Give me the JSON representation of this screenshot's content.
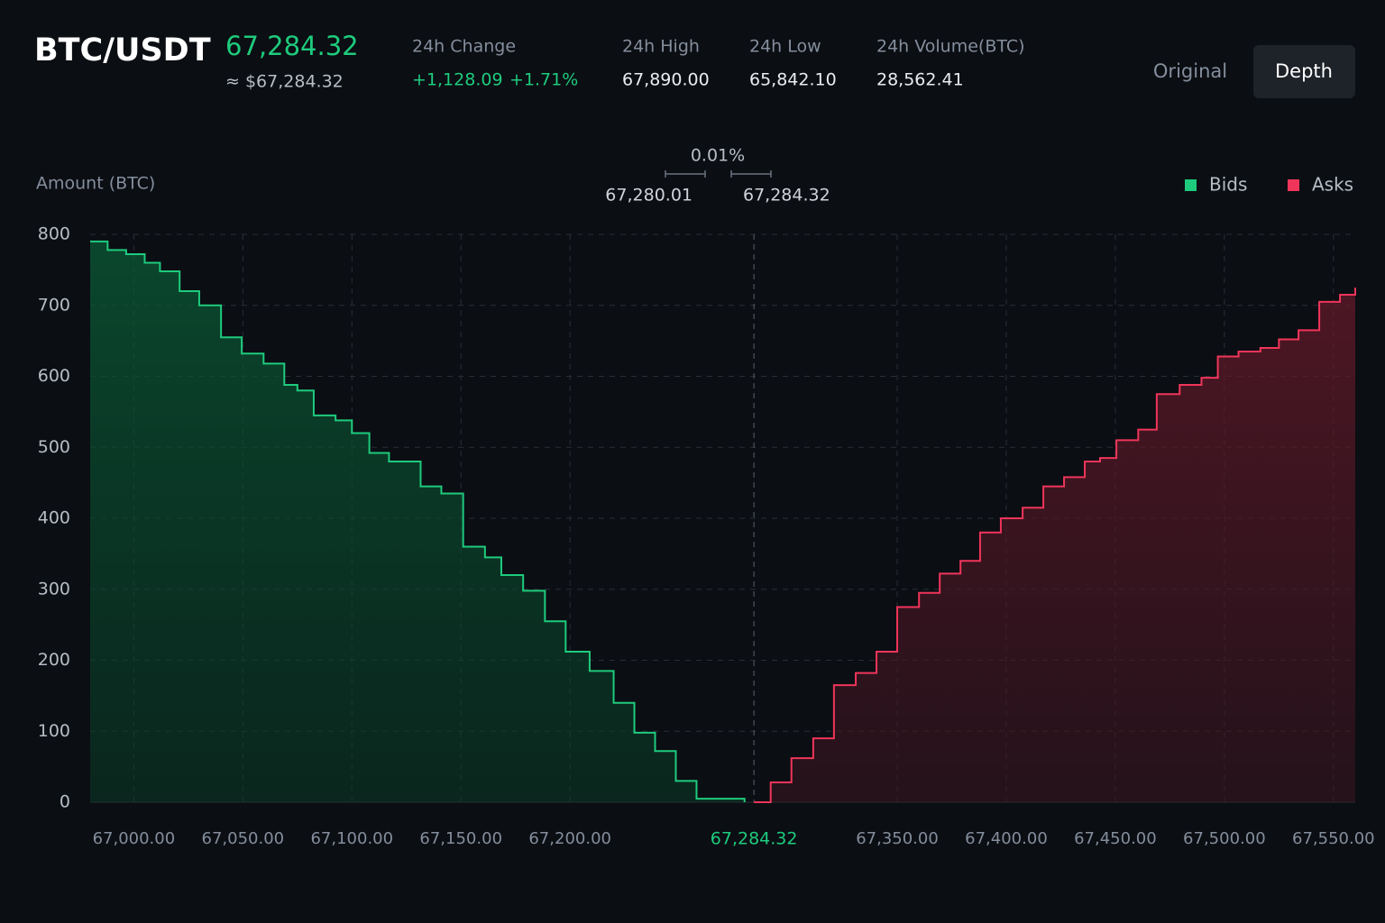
{
  "header": {
    "pair": "BTC/USDT",
    "price": "67,284.32",
    "price_usd": "≈ $67,284.32",
    "change": {
      "label": "24h Change",
      "amount": "+1,128.09",
      "percent": "+1.71%"
    },
    "stats": [
      {
        "label": "24h High",
        "value": "67,890.00"
      },
      {
        "label": "24h Low",
        "value": "65,842.10"
      },
      {
        "label": "24h Volume(BTC)",
        "value": "28,562.41"
      }
    ],
    "tabs": [
      "Original",
      "Depth"
    ],
    "active_tab": "Depth"
  },
  "chart_data": {
    "type": "depth",
    "y_label": "Amount (BTC)",
    "spread": {
      "percent": "0.01%",
      "bid": "67,280.01",
      "ask": "67,284.32"
    },
    "mid_price": {
      "value": 67284.32,
      "label": "67,284.32"
    },
    "xlim": [
      66980,
      67560
    ],
    "ylim": [
      0,
      800
    ],
    "yticks": [
      0,
      100,
      200,
      300,
      400,
      500,
      600,
      700,
      800
    ],
    "xticks": [
      {
        "value": 67000,
        "label": "67,000.00"
      },
      {
        "value": 67050,
        "label": "67,050.00"
      },
      {
        "value": 67100,
        "label": "67,100.00"
      },
      {
        "value": 67150,
        "label": "67,150.00"
      },
      {
        "value": 67200,
        "label": "67,200.00"
      },
      {
        "value": 67350,
        "label": "67,350.00"
      },
      {
        "value": 67400,
        "label": "67,400.00"
      },
      {
        "value": 67450,
        "label": "67,450.00"
      },
      {
        "value": 67500,
        "label": "67,500.00"
      },
      {
        "value": 67550,
        "label": "67,550.00"
      }
    ],
    "grid": true,
    "legend": "top-right",
    "series": [
      {
        "name": "Bids",
        "color": "#1ecb7d",
        "x": [
          66980,
          66988,
          66996.5,
          67005,
          67012,
          67021,
          67030,
          67040,
          67049.5,
          67059.5,
          67069,
          67075,
          67082.5,
          67092.5,
          67100,
          67108,
          67117,
          67131.5,
          67141,
          67151,
          67161,
          67168.5,
          67178.5,
          67188.5,
          67198,
          67209,
          67220,
          67229.5,
          67239,
          67248.5,
          67258,
          67280.01
        ],
        "values": [
          790,
          778,
          772,
          760,
          748,
          720,
          700,
          655,
          632,
          618,
          588,
          580,
          545,
          538,
          520,
          492,
          480,
          445,
          435,
          360,
          345,
          320,
          298,
          255,
          212,
          185,
          140,
          98,
          72,
          30,
          5,
          0
        ]
      },
      {
        "name": "Asks",
        "color": "#f0355a",
        "x": [
          67284.32,
          67292,
          67301.5,
          67311.5,
          67321,
          67331,
          67340.5,
          67350,
          67360,
          67369.5,
          67379,
          67388,
          67397.5,
          67407.5,
          67417,
          67426.5,
          67436,
          67443,
          67450.5,
          67460.5,
          67469,
          67479.5,
          67489.5,
          67497,
          67506.5,
          67516.5,
          67525,
          67534,
          67543.5,
          67553,
          67560
        ],
        "values": [
          0,
          28,
          62,
          90,
          165,
          182,
          212,
          275,
          295,
          322,
          340,
          380,
          400,
          415,
          445,
          458,
          480,
          485,
          510,
          525,
          575,
          588,
          598,
          628,
          635,
          640,
          652,
          665,
          705,
          715,
          725
        ]
      }
    ]
  }
}
